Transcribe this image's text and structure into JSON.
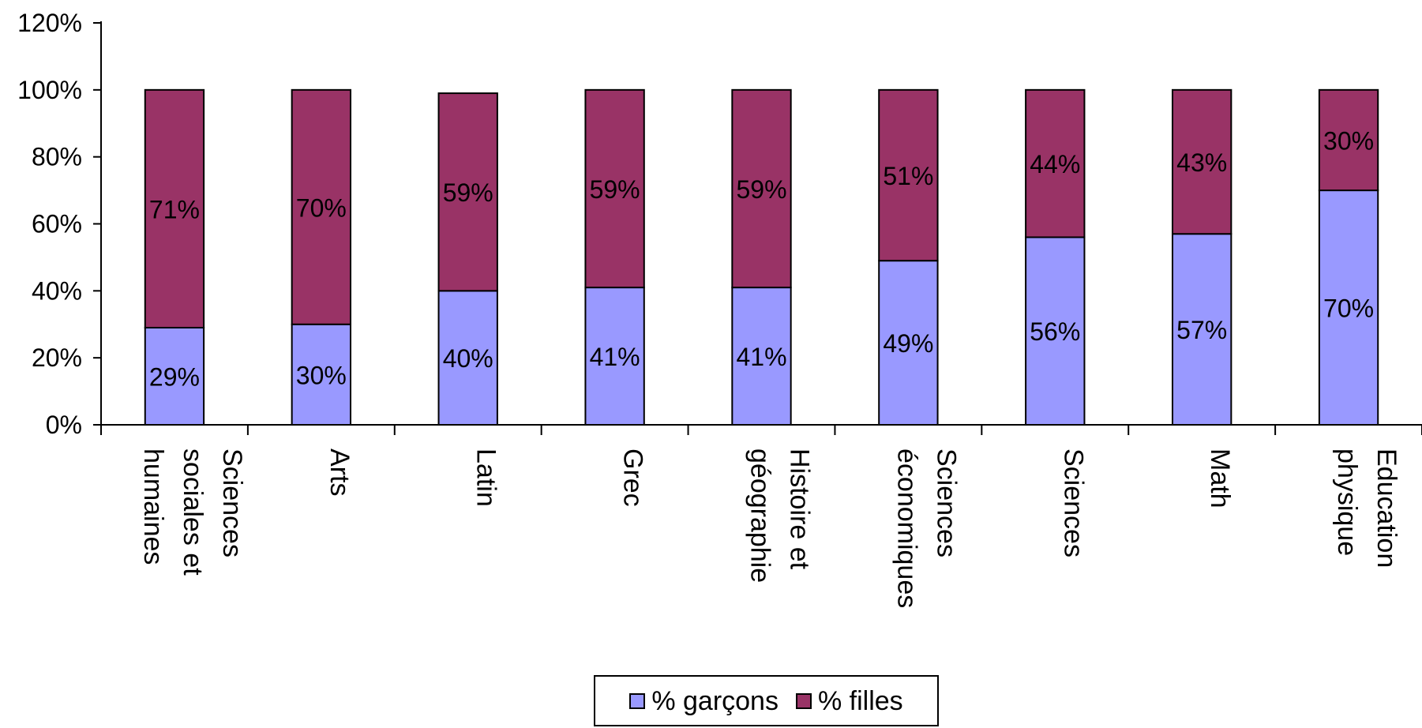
{
  "chart_data": {
    "type": "bar",
    "stacked": true,
    "categories": [
      "Sciences sociales et humaines",
      "Arts",
      "Latin",
      "Grec",
      "Histoire et géographie",
      "Sciences économiques",
      "Sciences",
      "Math",
      "Education physique"
    ],
    "category_lines": [
      [
        "Sciences",
        "sociales et",
        "humaines"
      ],
      [
        "Arts"
      ],
      [
        "Latin"
      ],
      [
        "Grec"
      ],
      [
        "Histoire et",
        "géographie"
      ],
      [
        "Sciences",
        "économiques"
      ],
      [
        "Sciences"
      ],
      [
        "Math"
      ],
      [
        "Education",
        "physique"
      ]
    ],
    "series": [
      {
        "name": "% garçons",
        "color": "#9999ff",
        "values": [
          29,
          30,
          40,
          41,
          41,
          49,
          56,
          57,
          70
        ]
      },
      {
        "name": "% filles",
        "color": "#993366",
        "values": [
          71,
          70,
          59,
          59,
          59,
          51,
          44,
          43,
          30
        ]
      }
    ],
    "y_ticks": [
      "0%",
      "20%",
      "40%",
      "60%",
      "80%",
      "100%",
      "120%"
    ],
    "ylim": [
      0,
      120
    ],
    "data_labels": true,
    "legend_position": "bottom",
    "grid": false
  }
}
